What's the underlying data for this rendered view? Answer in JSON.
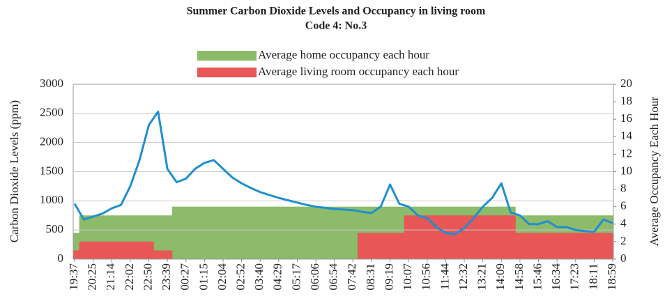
{
  "chart_data": {
    "type": "combo",
    "title": "Summer Carbon Dioxide Levels and Occupancy in living room",
    "subtitle": "Code 4: No.3",
    "y_label": "Carbon Dioxide Levels (ppm)",
    "y2_label": "Average Occupancy Each Hour",
    "categories": [
      "19:37",
      null,
      "20:25",
      null,
      "21:14",
      null,
      "22:02",
      null,
      "22:50",
      null,
      "23:39",
      null,
      "00:27",
      null,
      "01:15",
      null,
      "02:04",
      null,
      "02:52",
      null,
      "03:40",
      null,
      "04:29",
      null,
      "05:17",
      null,
      "06:06",
      null,
      "06:54",
      null,
      "07:42",
      null,
      "08:31",
      null,
      "09:19",
      null,
      "10:07",
      null,
      "10:56",
      null,
      "11:44",
      null,
      "12:32",
      null,
      "13:21",
      null,
      "14:09",
      null,
      "14:58",
      null,
      "15:46",
      null,
      "16:34",
      null,
      "17:23",
      null,
      "18:11",
      null,
      "18:59"
    ],
    "series": [
      {
        "type": "area",
        "axis": "y2",
        "name": "Average home occupancy each hour",
        "color": "#8cbb6a",
        "values": [
          3,
          5,
          5,
          5,
          5,
          5,
          5,
          5,
          5,
          5,
          5,
          6,
          6,
          6,
          6,
          6,
          6,
          6,
          6,
          6,
          6,
          6,
          6,
          6,
          6,
          6,
          6,
          6,
          6,
          6,
          6,
          6,
          6,
          6,
          6,
          6,
          6,
          6,
          6,
          6,
          6,
          6,
          6,
          6,
          6,
          6,
          6,
          6,
          5,
          5,
          5,
          5,
          5,
          5,
          5,
          5,
          5,
          5,
          5
        ]
      },
      {
        "type": "area",
        "axis": "y2",
        "name": "Average living room occupancy each hour",
        "color": "#e85656",
        "values": [
          1,
          2,
          2,
          2,
          2,
          2,
          2,
          2,
          2,
          1,
          1,
          0,
          0,
          0,
          0,
          0,
          0,
          0,
          0,
          0,
          0,
          0,
          0,
          0,
          0,
          0,
          0,
          0,
          0,
          0,
          0,
          3,
          3,
          3,
          3,
          3,
          5,
          5,
          5,
          5,
          5,
          5,
          5,
          5,
          5,
          5,
          5,
          5,
          3,
          3,
          3,
          3,
          3,
          3,
          3,
          3,
          3,
          3,
          3
        ]
      },
      {
        "type": "line",
        "color": "#1f8fce",
        "values": [
          950,
          680,
          730,
          780,
          870,
          930,
          1250,
          1700,
          2300,
          2530,
          1550,
          1320,
          1380,
          1550,
          1650,
          1700,
          1550,
          1400,
          1300,
          1220,
          1150,
          1100,
          1050,
          1010,
          970,
          930,
          900,
          880,
          860,
          850,
          840,
          810,
          790,
          900,
          1280,
          950,
          900,
          750,
          700,
          550,
          450,
          430,
          530,
          700,
          900,
          1050,
          1300,
          800,
          750,
          600,
          600,
          650,
          550,
          550,
          500,
          480,
          470,
          680,
          620
        ]
      }
    ],
    "ylim": [
      0,
      3000
    ],
    "yticks": [
      0,
      500,
      1000,
      1500,
      2000,
      2500,
      3000
    ],
    "y2lim": [
      0,
      20
    ],
    "y2ticks": [
      0,
      2,
      4,
      6,
      8,
      10,
      12,
      14,
      16,
      18,
      20
    ],
    "grid": true
  }
}
